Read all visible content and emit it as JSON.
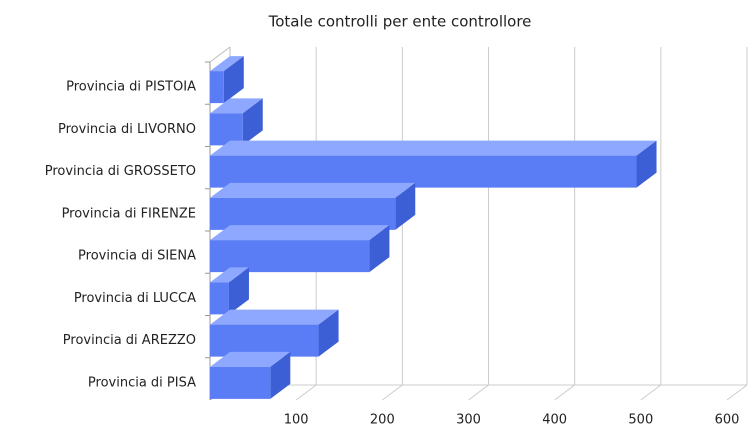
{
  "chart_data": {
    "type": "bar",
    "orientation": "horizontal",
    "title": "Totale controlli per ente controllore",
    "categories": [
      "Provincia di PISTOIA",
      "Provincia di LIVORNO",
      "Provincia di GROSSETO",
      "Provincia di FIRENZE",
      "Provincia di SIENA",
      "Provincia di LUCCA",
      "Provincia di AREZZO",
      "Provincia di PISA"
    ],
    "values": [
      16,
      38,
      495,
      215,
      185,
      22,
      126,
      70
    ],
    "color": "#5a7cf4",
    "xlim": [
      0,
      600
    ],
    "xticks": [
      100,
      200,
      300,
      400,
      500,
      600
    ],
    "grid": true
  }
}
